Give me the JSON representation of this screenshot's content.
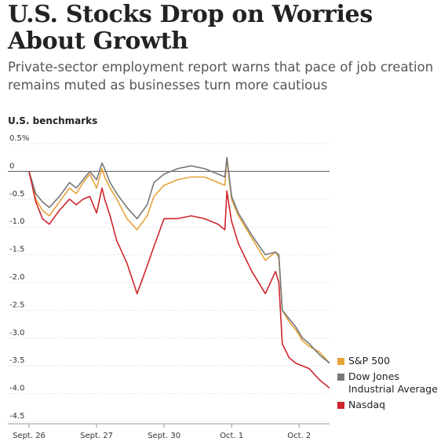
{
  "headline": "U.S. Stocks Drop on Worries About Growth",
  "dek": "Private-sector employment report warns that pace of job creation remains muted as businesses turn more cautious",
  "chart_data": {
    "type": "line",
    "title": "U.S. benchmarks",
    "xlabel": "",
    "ylabel": "",
    "ylim": [
      -4.5,
      0.5
    ],
    "yticks": [
      0.5,
      0,
      -0.5,
      -1.0,
      -1.5,
      -2.0,
      -2.5,
      -3.0,
      -3.5,
      -4.0,
      -4.5
    ],
    "ytick_labels": [
      "0.5%",
      "0",
      "-0.5",
      "-1.0",
      "-1.5",
      "-2.0",
      "-2.5",
      "-3.0",
      "-3.5",
      "-4.0",
      "-4.5"
    ],
    "xlim": [
      0,
      4.45
    ],
    "xticks": [
      0,
      1,
      2,
      3,
      4
    ],
    "xtick_labels": [
      "Sept. 26",
      "Sept. 27",
      "Sept. 30",
      "Oct. 1",
      "Oct. 2"
    ],
    "grid": true,
    "legend_position": "right",
    "series": [
      {
        "name": "S&P 500",
        "color": "#e8a33a",
        "x": [
          0,
          0.1,
          0.2,
          0.3,
          0.45,
          0.6,
          0.7,
          0.8,
          0.9,
          1.0,
          1.08,
          1.12,
          1.2,
          1.3,
          1.45,
          1.6,
          1.75,
          1.85,
          2.0,
          2.2,
          2.4,
          2.6,
          2.8,
          2.9,
          2.93,
          2.96,
          3.0,
          3.1,
          3.3,
          3.5,
          3.65,
          3.7,
          3.75,
          3.85,
          3.95,
          4.05,
          4.15,
          4.3,
          4.45
        ],
        "y": [
          0,
          -0.5,
          -0.7,
          -0.8,
          -0.55,
          -0.3,
          -0.4,
          -0.2,
          -0.05,
          -0.3,
          0.05,
          -0.1,
          -0.3,
          -0.5,
          -0.85,
          -1.05,
          -0.8,
          -0.45,
          -0.25,
          -0.15,
          -0.1,
          -0.1,
          -0.2,
          -0.25,
          0.25,
          -0.1,
          -0.5,
          -0.8,
          -1.2,
          -1.6,
          -1.45,
          -1.55,
          -2.5,
          -2.7,
          -2.85,
          -3.05,
          -3.15,
          -3.25,
          -3.45
        ]
      },
      {
        "name": "Dow Jones Industrial Average",
        "color": "#777777",
        "x": [
          0,
          0.1,
          0.2,
          0.3,
          0.45,
          0.6,
          0.7,
          0.8,
          0.9,
          1.0,
          1.08,
          1.12,
          1.2,
          1.3,
          1.45,
          1.6,
          1.75,
          1.85,
          2.0,
          2.2,
          2.4,
          2.6,
          2.8,
          2.9,
          2.93,
          2.96,
          3.0,
          3.1,
          3.3,
          3.5,
          3.65,
          3.7,
          3.75,
          3.85,
          3.95,
          4.05,
          4.15,
          4.3,
          4.45
        ],
        "y": [
          0,
          -0.4,
          -0.55,
          -0.65,
          -0.45,
          -0.2,
          -0.3,
          -0.15,
          0,
          -0.15,
          0.15,
          0.05,
          -0.2,
          -0.4,
          -0.65,
          -0.85,
          -0.6,
          -0.2,
          -0.05,
          0.05,
          0.1,
          0.05,
          -0.05,
          -0.1,
          0.25,
          -0.05,
          -0.45,
          -0.75,
          -1.15,
          -1.5,
          -1.45,
          -1.5,
          -2.5,
          -2.65,
          -2.8,
          -3.0,
          -3.1,
          -3.3,
          -3.45
        ]
      },
      {
        "name": "Nasdaq",
        "color": "#d0252d",
        "x": [
          0,
          0.1,
          0.2,
          0.3,
          0.45,
          0.6,
          0.7,
          0.8,
          0.9,
          1.0,
          1.08,
          1.12,
          1.2,
          1.3,
          1.45,
          1.6,
          1.75,
          1.85,
          2.0,
          2.2,
          2.4,
          2.6,
          2.8,
          2.9,
          2.93,
          2.96,
          3.0,
          3.1,
          3.3,
          3.5,
          3.65,
          3.7,
          3.75,
          3.85,
          3.95,
          4.05,
          4.15,
          4.3,
          4.45
        ],
        "y": [
          0,
          -0.55,
          -0.85,
          -0.95,
          -0.7,
          -0.5,
          -0.6,
          -0.5,
          -0.45,
          -0.75,
          -0.3,
          -0.5,
          -0.8,
          -1.25,
          -1.65,
          -2.2,
          -1.7,
          -1.35,
          -0.85,
          -0.85,
          -0.8,
          -0.85,
          -0.95,
          -1.05,
          -0.35,
          -0.6,
          -0.9,
          -1.3,
          -1.8,
          -2.2,
          -1.8,
          -2.0,
          -3.1,
          -3.35,
          -3.45,
          -3.5,
          -3.55,
          -3.75,
          -3.9
        ]
      }
    ]
  }
}
